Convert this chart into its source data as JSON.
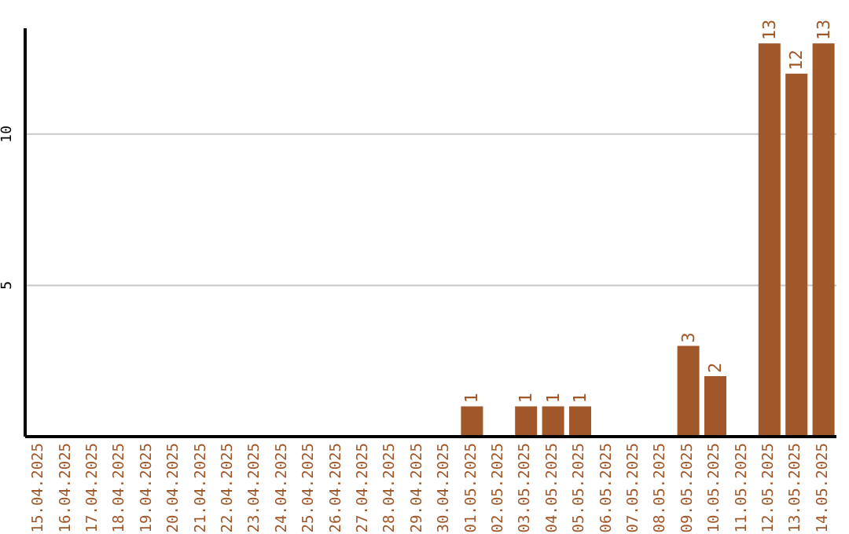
{
  "chart_data": {
    "type": "bar",
    "categories": [
      "15.04.2025",
      "16.04.2025",
      "17.04.2025",
      "18.04.2025",
      "19.04.2025",
      "20.04.2025",
      "21.04.2025",
      "22.04.2025",
      "23.04.2025",
      "24.04.2025",
      "25.04.2025",
      "26.04.2025",
      "27.04.2025",
      "28.04.2025",
      "29.04.2025",
      "30.04.2025",
      "01.05.2025",
      "02.05.2025",
      "03.05.2025",
      "04.05.2025",
      "05.05.2025",
      "06.05.2025",
      "07.05.2025",
      "08.05.2025",
      "09.05.2025",
      "10.05.2025",
      "11.05.2025",
      "12.05.2025",
      "13.05.2025",
      "14.05.2025"
    ],
    "values": [
      0,
      0,
      0,
      0,
      0,
      0,
      0,
      0,
      0,
      0,
      0,
      0,
      0,
      0,
      0,
      0,
      1,
      0,
      1,
      1,
      1,
      0,
      0,
      0,
      3,
      2,
      0,
      13,
      12,
      13
    ],
    "value_labels": [
      null,
      null,
      null,
      null,
      null,
      null,
      null,
      null,
      null,
      null,
      null,
      null,
      null,
      null,
      null,
      null,
      "1",
      null,
      "1",
      "1",
      "1",
      null,
      null,
      null,
      "3",
      "2",
      null,
      "13",
      "12",
      "13"
    ],
    "color": "#a0572a",
    "ylim": [
      0,
      13.5
    ],
    "yticks": [
      5,
      10
    ],
    "grid": "y"
  }
}
